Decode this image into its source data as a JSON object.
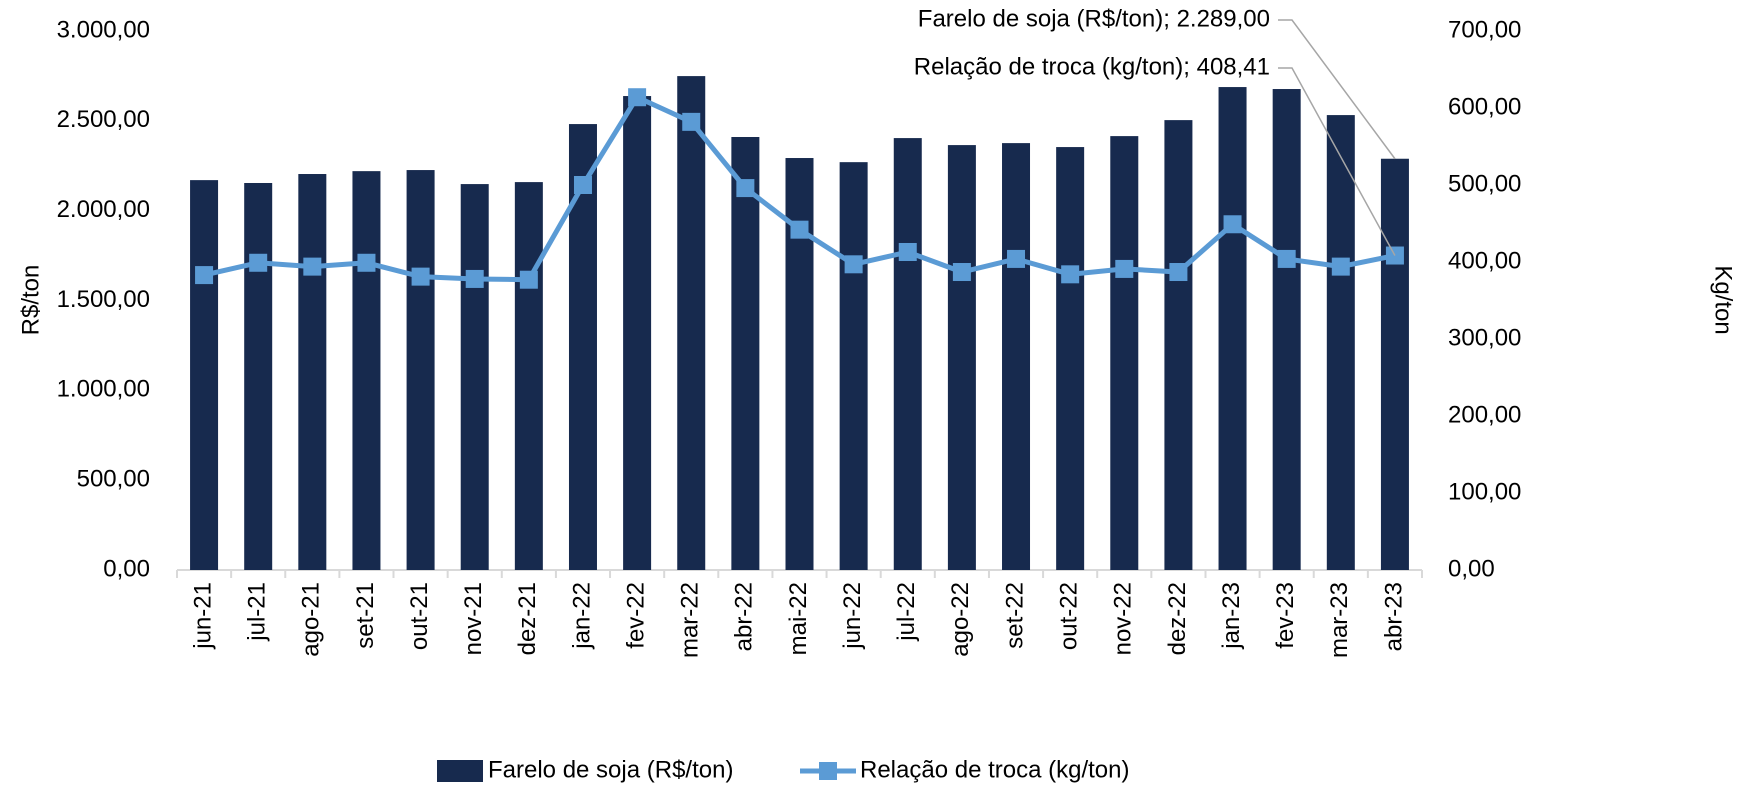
{
  "chart_data": {
    "type": "bar_line",
    "categories": [
      "jun-21",
      "jul-21",
      "ago-21",
      "set-21",
      "out-21",
      "nov-21",
      "dez-21",
      "jan-22",
      "fev-22",
      "mar-22",
      "abr-22",
      "mai-22",
      "jun-22",
      "jul-22",
      "ago-22",
      "set-22",
      "out-22",
      "nov-22",
      "dez-22",
      "jan-23",
      "fev-23",
      "mar-23",
      "abr-23"
    ],
    "series": [
      {
        "name": "Farelo de soja (R$/ton)",
        "color": "#172a4e",
        "type": "bar",
        "values": [
          2170,
          2154,
          2204,
          2220,
          2226,
          2148,
          2159,
          2482,
          2638,
          2749,
          2410,
          2293,
          2270,
          2404,
          2365,
          2376,
          2354,
          2415,
          2504,
          2688,
          2677,
          2532,
          2289
        ],
        "value_labels": [
          null,
          null,
          null,
          null,
          null,
          null,
          null,
          null,
          null,
          null,
          null,
          null,
          null,
          null,
          null,
          null,
          null,
          null,
          null,
          null,
          null,
          null,
          "Farelo de soja (R$/ton); 2.289,00"
        ]
      },
      {
        "name": "Relação de troca (kg/ton)",
        "color": "#5b9bd5",
        "type": "line",
        "axis": "y2",
        "values": [
          383,
          399,
          394,
          399,
          381,
          378,
          377,
          500,
          614,
          582,
          496,
          442,
          397,
          413,
          387,
          404,
          384,
          391,
          387,
          449,
          404,
          394,
          408.41
        ],
        "value_labels": [
          null,
          null,
          null,
          null,
          null,
          null,
          null,
          null,
          null,
          null,
          null,
          null,
          null,
          null,
          null,
          null,
          null,
          null,
          null,
          null,
          null,
          null,
          "Relação de troca (kg/ton); 408,41"
        ]
      }
    ],
    "ylabel": "R$/ton",
    "y2label": "Kg/ton",
    "ylim": [
      0,
      3000
    ],
    "yticks": [
      {
        "value": 0,
        "label": "0,00"
      },
      {
        "value": 500,
        "label": "500,00"
      },
      {
        "value": 1000,
        "label": "1.000,00"
      },
      {
        "value": 1500,
        "label": "1.500,00"
      },
      {
        "value": 2000,
        "label": "2.000,00"
      },
      {
        "value": 2500,
        "label": "2.500,00"
      },
      {
        "value": 3000,
        "label": "3.000,00"
      }
    ],
    "y2lim": [
      0,
      700
    ],
    "y2ticks": [
      {
        "value": 0,
        "label": "0,00"
      },
      {
        "value": 100,
        "label": "100,00"
      },
      {
        "value": 200,
        "label": "200,00"
      },
      {
        "value": 300,
        "label": "300,00"
      },
      {
        "value": 400,
        "label": "400,00"
      },
      {
        "value": 500,
        "label": "500,00"
      },
      {
        "value": 600,
        "label": "600,00"
      },
      {
        "value": 700,
        "label": "700,00"
      }
    ],
    "legend": "bottom"
  }
}
